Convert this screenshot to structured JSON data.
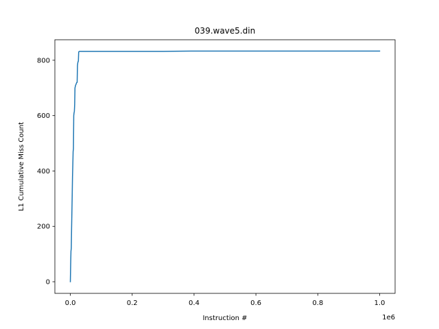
{
  "chart_data": {
    "type": "line",
    "title": "039.wave5.din",
    "xlabel": "Instruction #",
    "ylabel": "L1 Cumulative Miss Count",
    "x_offset_text": "1e6",
    "xlim": [
      -0.05,
      1.05
    ],
    "ylim": [
      -42,
      874
    ],
    "x_scale_factor": 1000000,
    "x_ticks": [
      0.0,
      0.2,
      0.4,
      0.6,
      0.8,
      1.0
    ],
    "x_tick_labels": [
      "0.0",
      "0.2",
      "0.4",
      "0.6",
      "0.8",
      "1.0"
    ],
    "y_ticks": [
      0,
      200,
      400,
      600,
      800
    ],
    "y_tick_labels": [
      "0",
      "200",
      "400",
      "600",
      "800"
    ],
    "grid": false,
    "line_color": "#1f77b4",
    "series": [
      {
        "x": [
          0,
          1000,
          2000,
          3000,
          4000,
          5000,
          6000,
          7000,
          8000,
          9000,
          10000,
          11000,
          12000,
          13000,
          14000,
          15000,
          16000,
          17000,
          18000,
          19000,
          20000,
          21000,
          22000,
          23000,
          24000,
          25000,
          26000,
          27000,
          28000,
          29000,
          30000,
          31000,
          32000,
          33000,
          34000,
          35000,
          36000,
          38000,
          40000,
          60000,
          100000,
          200000,
          300000,
          390000,
          400000,
          500000,
          600000,
          700000,
          800000,
          900000,
          1000000
        ],
        "y": [
          0,
          60,
          110,
          120,
          190,
          250,
          310,
          380,
          420,
          470,
          480,
          600,
          610,
          615,
          640,
          700,
          705,
          710,
          712,
          715,
          718,
          720,
          720,
          780,
          790,
          795,
          797,
          830,
          831,
          832,
          832,
          832,
          832,
          832,
          832,
          832,
          832,
          832,
          832,
          832,
          832,
          832,
          832,
          833,
          833,
          833,
          833,
          833,
          833,
          833,
          833
        ]
      }
    ]
  }
}
